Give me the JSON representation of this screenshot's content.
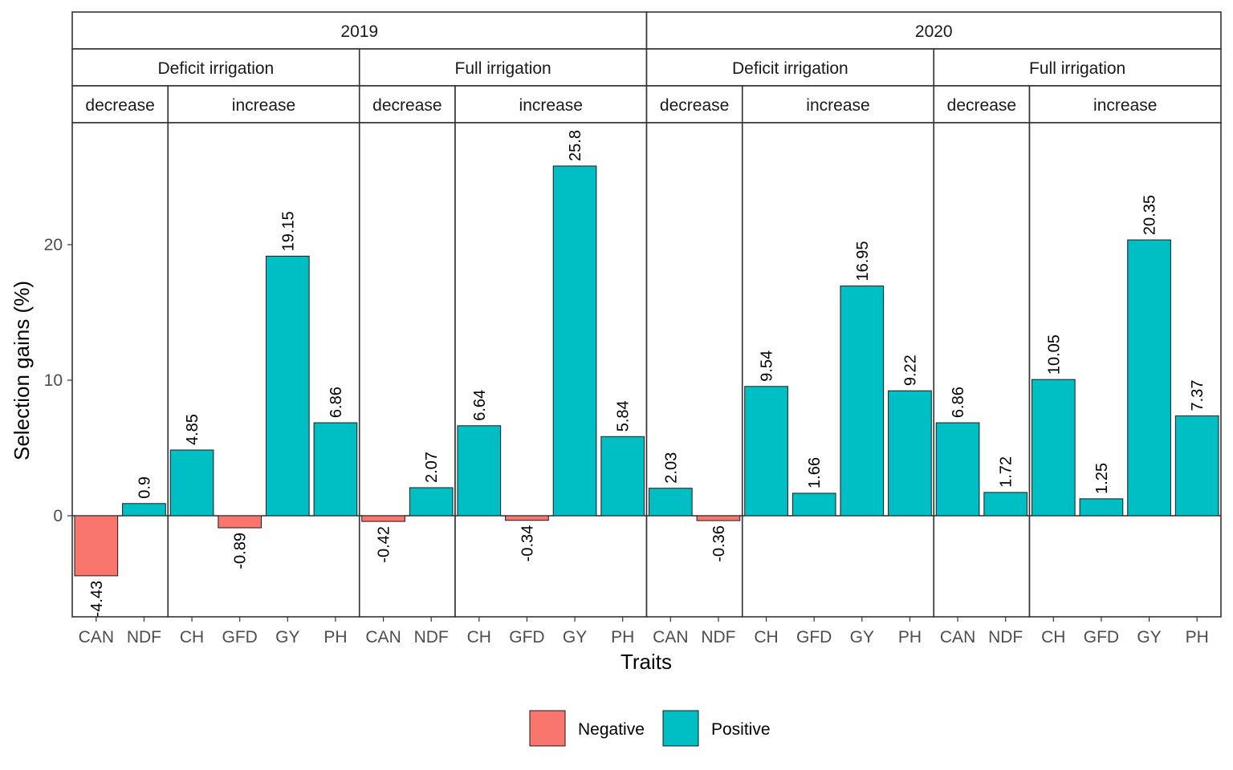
{
  "chart_data": {
    "type": "bar",
    "xlabel": "Traits",
    "ylabel": "Selection gains (%)",
    "ylim": [
      -7.5,
      29
    ],
    "y_ticks": [
      0,
      10,
      20
    ],
    "grid": false,
    "legend_position": "bottom",
    "legend": [
      {
        "name": "Negative",
        "color": "#F8766D"
      },
      {
        "name": "Positive",
        "color": "#00BFC4"
      }
    ],
    "years": [
      {
        "label": "2019",
        "irrigations": [
          {
            "label": "Deficit irrigation",
            "directions": [
              {
                "label": "decrease",
                "bars": [
                  {
                    "trait": "CAN",
                    "value": -4.43,
                    "label": "-4.43"
                  },
                  {
                    "trait": "NDF",
                    "value": 0.9,
                    "label": "0.9"
                  }
                ]
              },
              {
                "label": "increase",
                "bars": [
                  {
                    "trait": "CH",
                    "value": 4.85,
                    "label": "4.85"
                  },
                  {
                    "trait": "GFD",
                    "value": -0.89,
                    "label": "-0.89"
                  },
                  {
                    "trait": "GY",
                    "value": 19.15,
                    "label": "19.15"
                  },
                  {
                    "trait": "PH",
                    "value": 6.86,
                    "label": "6.86"
                  }
                ]
              }
            ]
          },
          {
            "label": "Full irrigation",
            "directions": [
              {
                "label": "decrease",
                "bars": [
                  {
                    "trait": "CAN",
                    "value": -0.42,
                    "label": "-0.42"
                  },
                  {
                    "trait": "NDF",
                    "value": 2.07,
                    "label": "2.07"
                  }
                ]
              },
              {
                "label": "increase",
                "bars": [
                  {
                    "trait": "CH",
                    "value": 6.64,
                    "label": "6.64"
                  },
                  {
                    "trait": "GFD",
                    "value": -0.34,
                    "label": "-0.34"
                  },
                  {
                    "trait": "GY",
                    "value": 25.8,
                    "label": "25.8"
                  },
                  {
                    "trait": "PH",
                    "value": 5.84,
                    "label": "5.84"
                  }
                ]
              }
            ]
          }
        ]
      },
      {
        "label": "2020",
        "irrigations": [
          {
            "label": "Deficit irrigation",
            "directions": [
              {
                "label": "decrease",
                "bars": [
                  {
                    "trait": "CAN",
                    "value": 2.03,
                    "label": "2.03"
                  },
                  {
                    "trait": "NDF",
                    "value": -0.36,
                    "label": "-0.36"
                  }
                ]
              },
              {
                "label": "increase",
                "bars": [
                  {
                    "trait": "CH",
                    "value": 9.54,
                    "label": "9.54"
                  },
                  {
                    "trait": "GFD",
                    "value": 1.66,
                    "label": "1.66"
                  },
                  {
                    "trait": "GY",
                    "value": 16.95,
                    "label": "16.95"
                  },
                  {
                    "trait": "PH",
                    "value": 9.22,
                    "label": "9.22"
                  }
                ]
              }
            ]
          },
          {
            "label": "Full irrigation",
            "directions": [
              {
                "label": "decrease",
                "bars": [
                  {
                    "trait": "CAN",
                    "value": 6.86,
                    "label": "6.86"
                  },
                  {
                    "trait": "NDF",
                    "value": 1.72,
                    "label": "1.72"
                  }
                ]
              },
              {
                "label": "increase",
                "bars": [
                  {
                    "trait": "CH",
                    "value": 10.05,
                    "label": "10.05"
                  },
                  {
                    "trait": "GFD",
                    "value": 1.25,
                    "label": "1.25"
                  },
                  {
                    "trait": "GY",
                    "value": 20.35,
                    "label": "20.35"
                  },
                  {
                    "trait": "PH",
                    "value": 7.37,
                    "label": "7.37"
                  }
                ]
              }
            ]
          }
        ]
      }
    ]
  }
}
